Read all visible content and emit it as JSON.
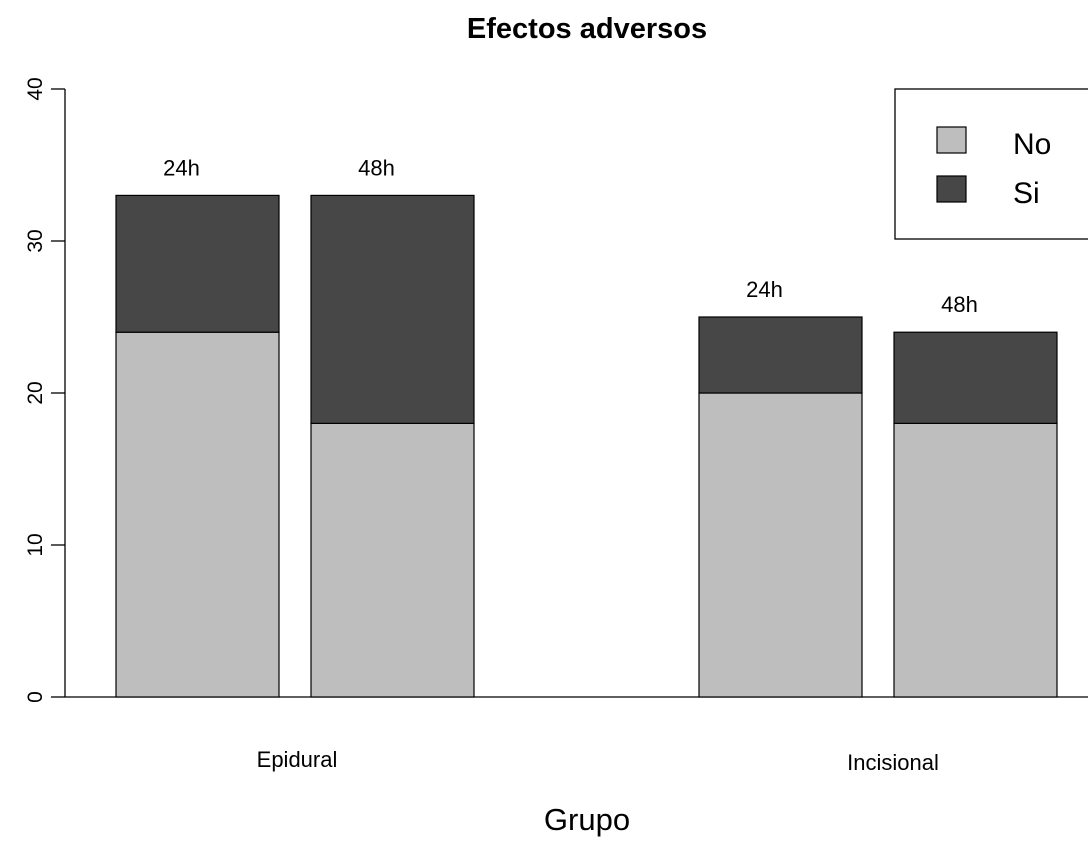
{
  "chart_data": {
    "type": "bar",
    "stacked": true,
    "title": "Efectos adversos",
    "xlabel": "Grupo",
    "ylabel": "",
    "ylim": [
      0,
      40
    ],
    "yticks": [
      "0",
      "10",
      "20",
      "30",
      "40"
    ],
    "groups": [
      {
        "name": "Epidural",
        "bars": [
          {
            "label": "24h",
            "No": 24,
            "Si": 9
          },
          {
            "label": "48h",
            "No": 18,
            "Si": 15
          }
        ]
      },
      {
        "name": "Incisional",
        "bars": [
          {
            "label": "24h",
            "No": 20,
            "Si": 5
          },
          {
            "label": "48h",
            "No": 18,
            "Si": 6
          }
        ]
      }
    ],
    "series": [
      {
        "name": "No",
        "color": "#bebebe"
      },
      {
        "name": "Si",
        "color": "#474747"
      }
    ],
    "legend": {
      "position": "top-right",
      "entries": [
        "No",
        "Si"
      ]
    },
    "grid": false
  }
}
